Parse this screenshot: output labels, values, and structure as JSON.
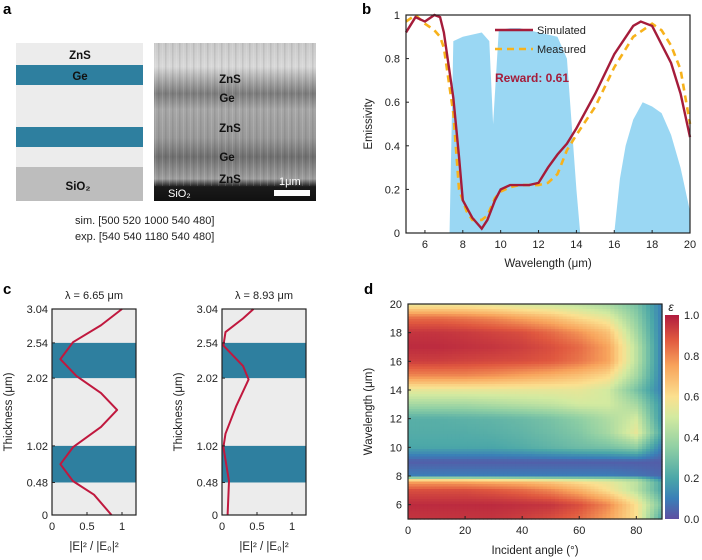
{
  "panel_labels": {
    "a": "a",
    "b": "b",
    "c": "c",
    "d": "d"
  },
  "colors": {
    "ge": "#2e7f9f",
    "zns": "#ececec",
    "sio2": "#bdbdbd",
    "simulated": "#a51c3a",
    "measured": "#f7b21b",
    "atmosphere": "#8fd3f2",
    "field": "#c0183e"
  },
  "panel_a": {
    "schematic_labels": {
      "zns": "ZnS",
      "ge": "Ge",
      "sio2": "SiO₂"
    },
    "sem_labels": [
      "ZnS",
      "Ge",
      "ZnS",
      "Ge",
      "ZnS"
    ],
    "sem_substrate": "SiO₂",
    "scale_bar": "1μm",
    "sim_text": "sim. [500 520 1000 540 480]",
    "exp_text": "exp. [540 540 1180 540 480]"
  },
  "chart_data": [
    {
      "id": "b",
      "type": "line",
      "xlabel": "Wavelength (μm)",
      "ylabel": "Emissivity",
      "xlim": [
        5,
        20
      ],
      "ylim": [
        0,
        1
      ],
      "xticks": [
        6,
        8,
        10,
        12,
        14,
        16,
        18,
        20
      ],
      "yticks": [
        {
          "v": 0,
          "t": "0"
        },
        {
          "v": 0.2,
          "t": "0.2"
        },
        {
          "v": 0.4,
          "t": "0.4"
        },
        {
          "v": 0.6,
          "t": "0.6"
        },
        {
          "v": 0.8,
          "t": "0.8"
        },
        {
          "v": 1,
          "t": "1"
        }
      ],
      "legend": {
        "simulated": "Simulated",
        "measured": "Measured",
        "placement": "top-center"
      },
      "annotation": "Reward: 0.61",
      "series": [
        {
          "name": "Simulated",
          "x": [
            5,
            5.5,
            6,
            6.5,
            6.8,
            7,
            7.5,
            7.8,
            8,
            8.5,
            9,
            9.3,
            9.7,
            10,
            10.5,
            11,
            11.5,
            12,
            12.5,
            13,
            13.5,
            14,
            15,
            16,
            17,
            17.4,
            18,
            19,
            19.5,
            20
          ],
          "y": [
            0.92,
            0.99,
            0.97,
            1.0,
            0.99,
            0.92,
            0.62,
            0.35,
            0.15,
            0.07,
            0.02,
            0.06,
            0.15,
            0.2,
            0.22,
            0.22,
            0.22,
            0.23,
            0.3,
            0.36,
            0.41,
            0.48,
            0.64,
            0.82,
            0.95,
            0.97,
            0.95,
            0.78,
            0.64,
            0.44
          ]
        },
        {
          "name": "Measured",
          "x": [
            5,
            5.5,
            6,
            6.5,
            6.8,
            7,
            7.5,
            7.8,
            8.2,
            8.5,
            9,
            9.3,
            9.7,
            10,
            10.5,
            11,
            12,
            12.5,
            13,
            13.5,
            14,
            15,
            16,
            17,
            18,
            18.5,
            19,
            19.5,
            20
          ],
          "y": [
            0.97,
            1.0,
            0.96,
            0.93,
            0.9,
            0.85,
            0.55,
            0.2,
            0.1,
            0.06,
            0.06,
            0.08,
            0.16,
            0.19,
            0.21,
            0.22,
            0.22,
            0.23,
            0.27,
            0.38,
            0.45,
            0.58,
            0.76,
            0.9,
            0.96,
            0.93,
            0.86,
            0.75,
            0.5
          ]
        },
        {
          "name": "Atmospheric transmittance",
          "x": [
            7.3,
            7.5,
            8,
            8.5,
            9,
            9.4,
            9.6,
            9.9,
            10.5,
            11,
            12,
            13,
            13.5,
            14,
            14.2,
            16,
            16.3,
            16.6,
            17,
            17.5,
            18,
            18.5,
            19,
            19.5,
            20
          ],
          "y": [
            0,
            0.88,
            0.9,
            0.91,
            0.92,
            0.88,
            0.5,
            0.93,
            0.94,
            0.94,
            0.92,
            0.9,
            0.8,
            0.2,
            0,
            0,
            0.25,
            0.4,
            0.52,
            0.6,
            0.58,
            0.55,
            0.45,
            0.3,
            0.1
          ]
        }
      ]
    },
    {
      "id": "c1",
      "type": "line",
      "title": "λ = 6.65 μm",
      "xlabel": "|E|² / |E₀|²",
      "ylabel": "Thickness (μm)",
      "xlim": [
        0,
        1.2
      ],
      "ylim": [
        0,
        3.04
      ],
      "xticks": [
        {
          "v": 0,
          "t": "0"
        },
        {
          "v": 0.5,
          "t": "0.5"
        },
        {
          "v": 1,
          "t": "1"
        }
      ],
      "yticks": [
        {
          "v": 0,
          "t": "0"
        },
        {
          "v": 0.48,
          "t": "0.48"
        },
        {
          "v": 1.02,
          "t": "1.02"
        },
        {
          "v": 2.02,
          "t": "2.02"
        },
        {
          "v": 2.54,
          "t": "2.54"
        },
        {
          "v": 3.04,
          "t": "3.04"
        }
      ],
      "ge_layers": [
        [
          0.48,
          1.02
        ],
        [
          2.02,
          2.54
        ]
      ],
      "field": {
        "t": [
          0,
          0.3,
          0.5,
          0.75,
          1.0,
          1.3,
          1.55,
          1.8,
          2.05,
          2.3,
          2.55,
          2.8,
          3.04
        ],
        "v": [
          0.85,
          0.6,
          0.3,
          0.12,
          0.3,
          0.7,
          0.93,
          0.7,
          0.35,
          0.12,
          0.3,
          0.7,
          1.0
        ]
      }
    },
    {
      "id": "c2",
      "type": "line",
      "title": "λ = 8.93 μm",
      "xlabel": "|E|² / |E₀|²",
      "ylabel": "Thickness (μm)",
      "xlim": [
        0,
        1.2
      ],
      "ylim": [
        0,
        3.04
      ],
      "xticks": [
        {
          "v": 0,
          "t": "0"
        },
        {
          "v": 0.5,
          "t": "0.5"
        },
        {
          "v": 1,
          "t": "1"
        }
      ],
      "yticks": [
        {
          "v": 0,
          "t": "0"
        },
        {
          "v": 0.48,
          "t": "0.48"
        },
        {
          "v": 1.02,
          "t": "1.02"
        },
        {
          "v": 2.02,
          "t": "2.02"
        },
        {
          "v": 2.54,
          "t": "2.54"
        },
        {
          "v": 3.04,
          "t": "3.04"
        }
      ],
      "ge_layers": [
        [
          0.48,
          1.02
        ],
        [
          2.02,
          2.54
        ]
      ],
      "field": {
        "t": [
          0,
          0.5,
          0.75,
          1.0,
          1.2,
          1.6,
          2.0,
          2.2,
          2.5,
          2.7,
          2.9,
          3.04
        ],
        "v": [
          0.08,
          0.1,
          0.06,
          0.02,
          0.05,
          0.2,
          0.38,
          0.3,
          0.02,
          0.05,
          0.3,
          0.45
        ]
      }
    },
    {
      "id": "d",
      "type": "heatmap",
      "xlabel": "Incident angle (°)",
      "ylabel": "Wavelength (μm)",
      "xlim": [
        0,
        89
      ],
      "ylim": [
        5,
        20
      ],
      "xticks": [
        0,
        20,
        40,
        60,
        80
      ],
      "yticks": [
        6,
        8,
        10,
        12,
        14,
        16,
        18,
        20
      ],
      "colorbar": {
        "label": "ε",
        "ticks": [
          "0.0",
          "0.2",
          "0.4",
          "0.6",
          "0.8",
          "1.0"
        ],
        "range": [
          0,
          1
        ]
      },
      "angles": [
        0,
        10,
        20,
        30,
        40,
        50,
        60,
        70,
        80,
        89
      ],
      "wavelengths": [
        5,
        6,
        7,
        7.6,
        7.8,
        8,
        9,
        10,
        11,
        12,
        13,
        14,
        15,
        16,
        17,
        18,
        19,
        20
      ],
      "values": [
        [
          0.95,
          0.95,
          0.95,
          0.95,
          0.93,
          0.9,
          0.85,
          0.75,
          0.6,
          0.2
        ],
        [
          0.97,
          0.97,
          0.97,
          0.97,
          0.96,
          0.95,
          0.9,
          0.8,
          0.6,
          0.3
        ],
        [
          0.9,
          0.9,
          0.9,
          0.88,
          0.85,
          0.8,
          0.72,
          0.6,
          0.45,
          0.2
        ],
        [
          0.75,
          0.75,
          0.74,
          0.72,
          0.7,
          0.66,
          0.6,
          0.55,
          0.45,
          0.2
        ],
        [
          0.5,
          0.5,
          0.5,
          0.48,
          0.46,
          0.44,
          0.42,
          0.4,
          0.35,
          0.1
        ],
        [
          0.1,
          0.1,
          0.1,
          0.1,
          0.1,
          0.1,
          0.1,
          0.1,
          0.08,
          0.05
        ],
        [
          0.03,
          0.03,
          0.03,
          0.03,
          0.03,
          0.03,
          0.03,
          0.03,
          0.03,
          0.03
        ],
        [
          0.2,
          0.2,
          0.2,
          0.2,
          0.22,
          0.25,
          0.28,
          0.3,
          0.35,
          0.1
        ],
        [
          0.22,
          0.22,
          0.22,
          0.23,
          0.25,
          0.28,
          0.32,
          0.4,
          0.55,
          0.2
        ],
        [
          0.23,
          0.23,
          0.24,
          0.25,
          0.27,
          0.3,
          0.35,
          0.42,
          0.5,
          0.15
        ],
        [
          0.4,
          0.4,
          0.4,
          0.42,
          0.44,
          0.46,
          0.5,
          0.5,
          0.4,
          0.15
        ],
        [
          0.55,
          0.55,
          0.55,
          0.55,
          0.55,
          0.55,
          0.55,
          0.5,
          0.3,
          0.1
        ],
        [
          0.8,
          0.8,
          0.8,
          0.78,
          0.75,
          0.72,
          0.68,
          0.62,
          0.4,
          0.1
        ],
        [
          0.93,
          0.93,
          0.92,
          0.91,
          0.9,
          0.88,
          0.83,
          0.75,
          0.45,
          0.1
        ],
        [
          0.97,
          0.97,
          0.96,
          0.95,
          0.93,
          0.9,
          0.85,
          0.75,
          0.45,
          0.1
        ],
        [
          0.95,
          0.95,
          0.94,
          0.92,
          0.9,
          0.85,
          0.78,
          0.68,
          0.4,
          0.1
        ],
        [
          0.85,
          0.85,
          0.83,
          0.8,
          0.75,
          0.7,
          0.62,
          0.55,
          0.35,
          0.1
        ],
        [
          0.55,
          0.55,
          0.55,
          0.53,
          0.5,
          0.48,
          0.45,
          0.4,
          0.3,
          0.1
        ]
      ]
    }
  ]
}
